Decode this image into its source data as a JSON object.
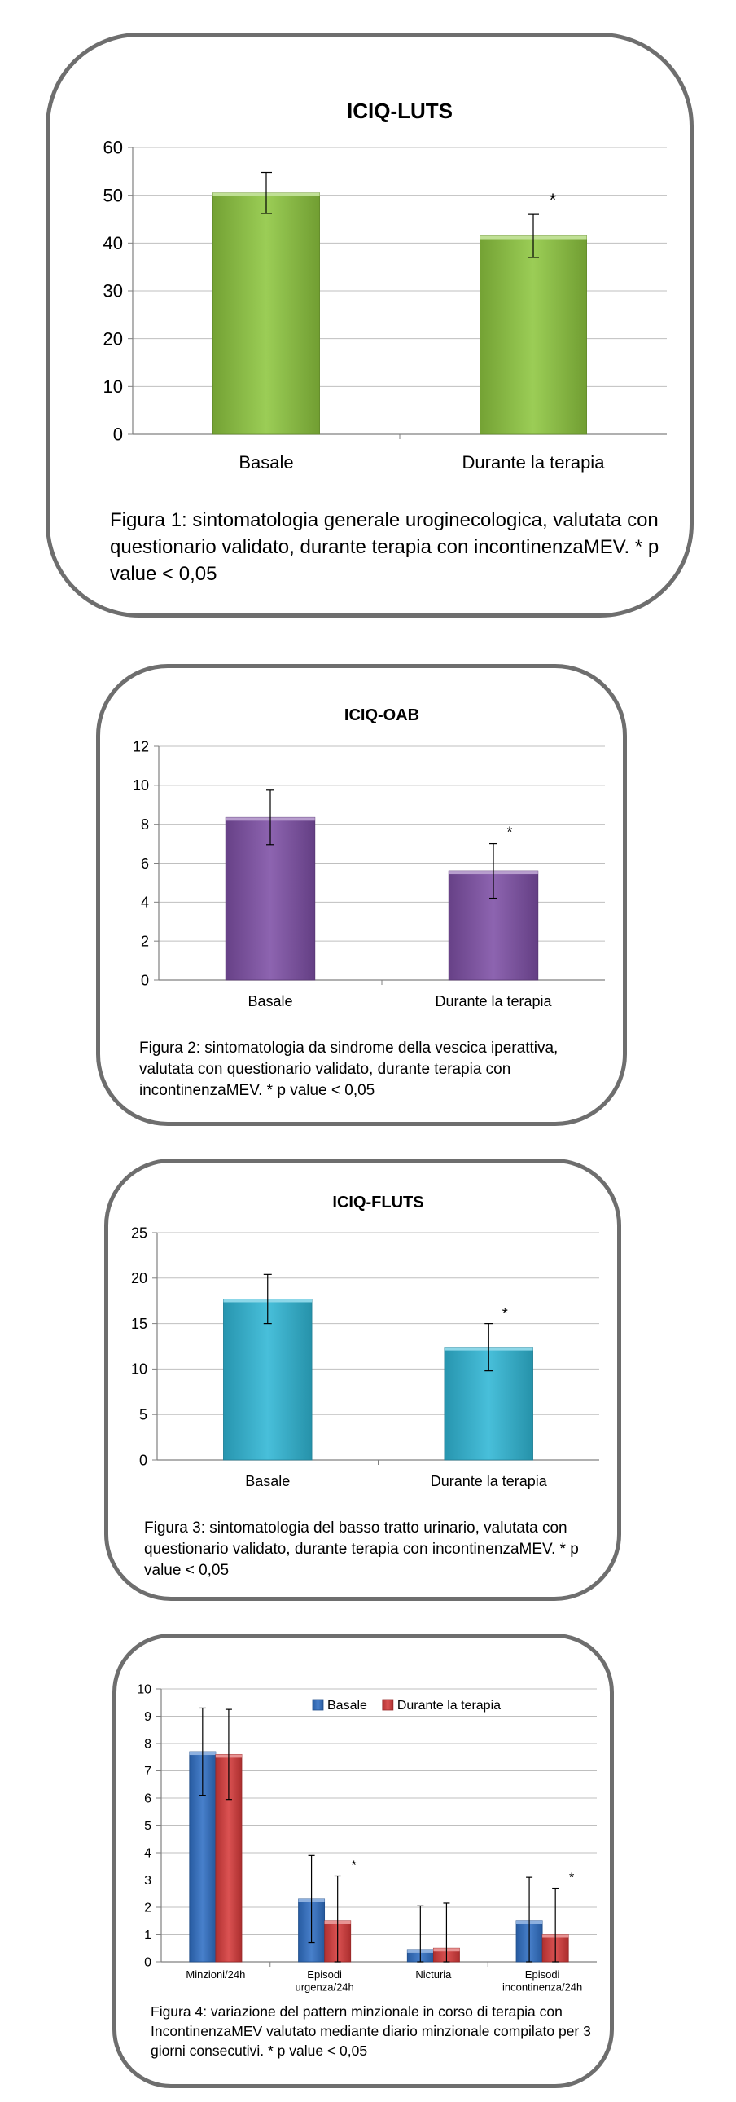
{
  "colors": {
    "frame": "#6e6e6e",
    "grid": "#bfbfbf",
    "axis": "#808080"
  },
  "figures": [
    {
      "id": "luts",
      "caption": "Figura 1: sintomatologia generale uroginecologica, valutata con questionario validato, durante terapia con incontinenzaMEV. * p value < 0,05"
    },
    {
      "id": "oab",
      "caption": "Figura 2: sintomatologia da sindrome della vescica iperattiva, valutata con questionario validato, durante terapia con incontinenzaMEV. * p value < 0,05"
    },
    {
      "id": "fluts",
      "caption": "Figura 3: sintomatologia del basso tratto urinario, valutata con questionario validato, durante terapia con incontinenzaMEV. * p value < 0,05"
    },
    {
      "id": "diary",
      "caption": "Figura 4: variazione del pattern minzionale in corso di terapia con IncontinenzaMEV valutato mediante diario minzionale compilato per 3 giorni consecutivi. * p value < 0,05"
    }
  ],
  "chart_data": [
    {
      "type": "bar",
      "title": "ICIQ-LUTS",
      "categories": [
        "Basale",
        "Durante la terapia"
      ],
      "values": [
        50.5,
        41.5
      ],
      "error": [
        4.3,
        4.5
      ],
      "significance": [
        "",
        "*"
      ],
      "ylim": [
        0,
        60
      ],
      "yticks": [
        0,
        10,
        20,
        30,
        40,
        50,
        60
      ],
      "color": "#8dc63f",
      "grid": true
    },
    {
      "type": "bar",
      "title": "ICIQ-OAB",
      "categories": [
        "Basale",
        "Durante la terapia"
      ],
      "values": [
        8.35,
        5.6
      ],
      "error": [
        1.4,
        1.4
      ],
      "significance": [
        "",
        "*"
      ],
      "ylim": [
        0,
        12
      ],
      "yticks": [
        0,
        2,
        4,
        6,
        8,
        10,
        12
      ],
      "color": "#7d4fa5",
      "grid": true
    },
    {
      "type": "bar",
      "title": "ICIQ-FLUTS",
      "categories": [
        "Basale",
        "Durante la terapia"
      ],
      "values": [
        17.7,
        12.4
      ],
      "error": [
        2.7,
        2.6
      ],
      "significance": [
        "",
        "*"
      ],
      "ylim": [
        0,
        25
      ],
      "yticks": [
        0,
        5,
        10,
        15,
        20,
        25
      ],
      "color": "#2fb6d5",
      "grid": true
    },
    {
      "type": "bar",
      "title": "",
      "categories": [
        [
          "Minzioni/24h"
        ],
        [
          "Episodi",
          "urgenza/24h"
        ],
        [
          "Nicturia"
        ],
        [
          "Episodi",
          "incontinenza/24h"
        ]
      ],
      "series": [
        {
          "name": "Basale",
          "values": [
            7.7,
            2.3,
            0.45,
            1.5
          ],
          "error": [
            1.6,
            1.6,
            1.6,
            1.6
          ],
          "color": "#2f6fc4"
        },
        {
          "name": "Durante la terapia",
          "values": [
            7.6,
            1.5,
            0.5,
            1.0
          ],
          "error": [
            1.65,
            1.65,
            1.65,
            1.7
          ],
          "color": "#d63a3a"
        }
      ],
      "significance": [
        "",
        "*",
        "",
        "*"
      ],
      "ylim": [
        0,
        10
      ],
      "yticks": [
        0,
        1,
        2,
        3,
        4,
        5,
        6,
        7,
        8,
        9,
        10
      ],
      "legend": "top",
      "grid": true
    }
  ]
}
